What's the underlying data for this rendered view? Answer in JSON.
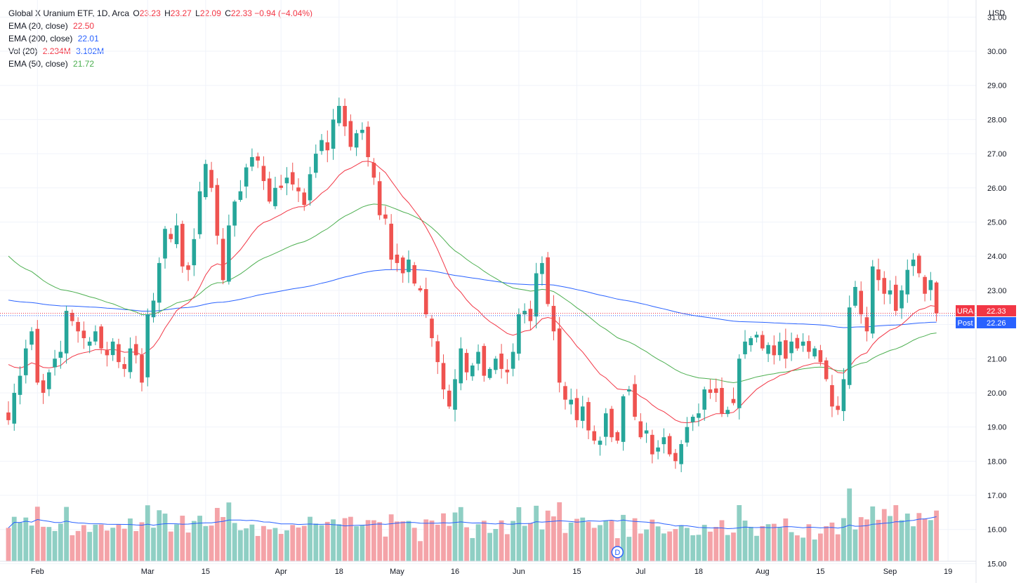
{
  "header": {
    "symbol_title": "Global X Uranium ETF, 1D, Arca",
    "ohlc": [
      {
        "label": "O",
        "value": "23.23"
      },
      {
        "label": "H",
        "value": "23.27"
      },
      {
        "label": "L",
        "value": "22.09"
      },
      {
        "label": "C",
        "value": "22.33"
      }
    ],
    "change": "−0.94 (−4.04%)"
  },
  "indicators": [
    {
      "name": "EMA (20, close)",
      "values": [
        "22.50"
      ],
      "colors": [
        "#f23645"
      ]
    },
    {
      "name": "EMA (200, close)",
      "values": [
        "22.01"
      ],
      "colors": [
        "#2962ff"
      ]
    },
    {
      "name": "Vol (20)",
      "values": [
        "2.234M",
        "3.102M"
      ],
      "colors": [
        "#f23645",
        "#2962ff"
      ]
    },
    {
      "name": "EMA (50, close)",
      "values": [
        "21.72"
      ],
      "colors": [
        "#4caf50"
      ]
    }
  ],
  "colors": {
    "up": "#26a69a",
    "down": "#ef5350",
    "vol_up": "#8fcfc4",
    "vol_down": "#f4a3a8",
    "ema20": "#f23645",
    "ema50": "#4caf50",
    "ema200": "#2962ff",
    "volma": "#2962ff",
    "grid": "#f0f3fa",
    "axis_text": "#131722"
  },
  "chart_data": {
    "type": "candlestick",
    "title": "Global X Uranium ETF, 1D, Arca",
    "currency": "USD",
    "y_axis": {
      "range": [
        14.7,
        31.5
      ],
      "ticks": [
        "31.00",
        "30.00",
        "29.00",
        "28.00",
        "27.00",
        "26.00",
        "25.00",
        "24.00",
        "23.00",
        "22.00",
        "21.00",
        "20.00",
        "19.00",
        "18.00",
        "17.00",
        "16.00",
        "15.00"
      ]
    },
    "x_labels": [
      {
        "i": 5,
        "label": "Feb"
      },
      {
        "i": 24,
        "label": "Mar"
      },
      {
        "i": 34,
        "label": "15"
      },
      {
        "i": 47,
        "label": "Apr"
      },
      {
        "i": 57,
        "label": "18"
      },
      {
        "i": 67,
        "label": "May"
      },
      {
        "i": 77,
        "label": "16"
      },
      {
        "i": 88,
        "label": "Jun"
      },
      {
        "i": 98,
        "label": "15"
      },
      {
        "i": 109,
        "label": "Jul"
      },
      {
        "i": 119,
        "label": "18"
      },
      {
        "i": 130,
        "label": "Aug"
      },
      {
        "i": 140,
        "label": "15"
      },
      {
        "i": 152,
        "label": "Sep"
      },
      {
        "i": 162,
        "label": "19"
      }
    ],
    "price_labels": [
      {
        "name": "URA",
        "value": "22.33",
        "price": 22.33,
        "color": "#f23645"
      },
      {
        "name": "Post",
        "value": "22.26",
        "price": 22.26,
        "color": "#2962ff"
      }
    ],
    "dividend_marker": {
      "i": 105,
      "label": "D"
    },
    "closes": [
      19.2,
      20.0,
      20.5,
      21.3,
      21.8,
      20.3,
      20.0,
      20.6,
      21.0,
      21.2,
      22.4,
      22.1,
      21.8,
      21.6,
      21.5,
      21.8,
      21.3,
      21.1,
      21.5,
      20.9,
      20.7,
      21.3,
      21.1,
      20.3,
      22.3,
      22.7,
      23.8,
      24.8,
      24.5,
      24.9,
      23.7,
      23.6,
      24.5,
      25.9,
      26.7,
      26.0,
      24.6,
      23.3,
      24.9,
      25.6,
      25.9,
      26.6,
      26.9,
      26.8,
      26.2,
      25.6,
      26.0,
      26.0,
      26.3,
      26.1,
      25.9,
      25.5,
      26.4,
      27.0,
      27.4,
      27.1,
      28.0,
      28.4,
      27.8,
      27.2,
      27.6,
      27.7,
      26.9,
      26.3,
      25.2,
      25.1,
      23.9,
      23.8,
      23.5,
      23.9,
      23.2,
      23.0,
      22.3,
      21.6,
      20.9,
      20.1,
      19.6,
      20.4,
      21.3,
      20.6,
      20.8,
      21.2,
      20.5,
      20.7,
      21.0,
      20.7,
      20.6,
      21.2,
      22.3,
      22.4,
      22.1,
      23.5,
      23.8,
      22.6,
      21.8,
      20.3,
      19.8,
      19.8,
      19.2,
      19.6,
      18.9,
      18.6,
      18.6,
      19.4,
      18.7,
      18.6,
      19.9,
      20.1,
      19.3,
      18.7,
      18.9,
      18.2,
      18.4,
      18.7,
      18.2,
      18.0,
      18.5,
      19.0,
      19.3,
      19.4,
      20.1,
      20.0,
      20.0,
      19.4,
      19.5,
      19.7,
      21.0,
      21.5,
      21.6,
      21.7,
      21.3,
      21.4,
      21.1,
      21.5,
      21.0,
      21.5,
      21.3,
      21.5,
      21.2,
      21.3,
      20.9,
      20.4,
      19.6,
      19.5,
      20.4,
      22.5,
      23.1,
      22.3,
      21.8,
      23.7,
      23.3,
      22.9,
      23.0,
      22.4,
      23.0,
      23.6,
      23.9,
      23.5,
      22.9,
      23.3,
      22.3
    ]
  }
}
